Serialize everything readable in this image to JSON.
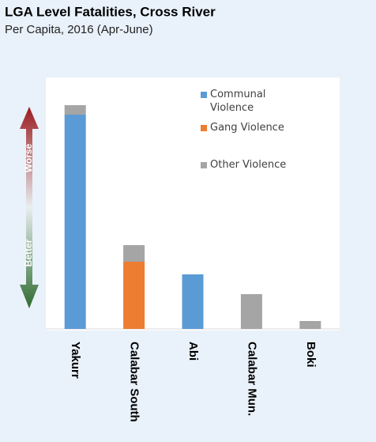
{
  "chart_data": {
    "type": "bar",
    "stacked": true,
    "title": "LGA Level Fatalities, Cross River",
    "subtitle": "Per Capita, 2016 (Apr-June)",
    "annotations": [
      "Worse",
      "Better"
    ],
    "categories": [
      "Yakurr",
      "Calabar South",
      "Abi",
      "Calabar Mun.",
      "Boki"
    ],
    "series": [
      {
        "name": "Communal Violence",
        "color": "#5b9bd5",
        "values": [
          271,
          null,
          69,
          null,
          null
        ]
      },
      {
        "name": "Gang Violence",
        "color": "#ed7d31",
        "values": [
          null,
          85,
          null,
          null,
          null
        ]
      },
      {
        "name": "Other Violence",
        "color": "#a5a5a5",
        "values": [
          12,
          21,
          null,
          44,
          10
        ]
      }
    ],
    "ylim": [
      0,
      300
    ]
  }
}
